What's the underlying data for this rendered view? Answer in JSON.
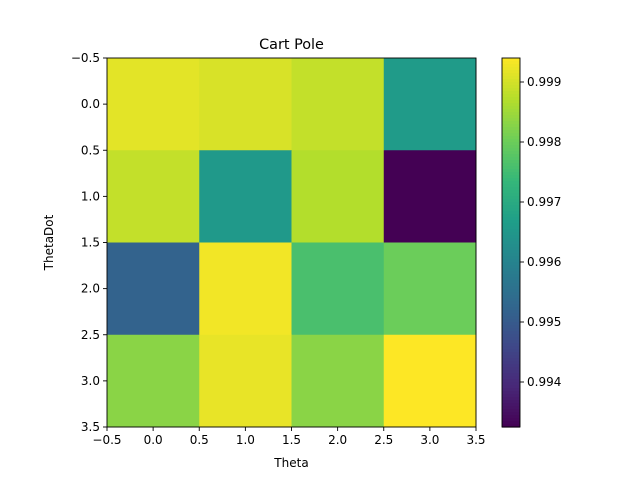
{
  "chart_data": {
    "type": "heatmap",
    "title": "Cart Pole",
    "xlabel": "Theta",
    "ylabel": "ThetaDot",
    "xlim": [
      -0.5,
      3.5
    ],
    "ylim": [
      3.5,
      -0.5
    ],
    "x_ticks": [
      "−0.5",
      "0.0",
      "0.5",
      "1.0",
      "1.5",
      "2.0",
      "2.5",
      "3.0",
      "3.5"
    ],
    "y_ticks": [
      "−0.5",
      "0.0",
      "0.5",
      "1.0",
      "1.5",
      "2.0",
      "2.5",
      "3.0",
      "3.5"
    ],
    "values": [
      [
        0.99915,
        0.99905,
        0.99885,
        0.9966
      ],
      [
        0.99885,
        0.99655,
        0.9987,
        0.99325
      ],
      [
        0.9952,
        0.9993,
        0.9976,
        0.998
      ],
      [
        0.9983,
        0.9992,
        0.9983,
        0.9994
      ]
    ],
    "colormap": "viridis",
    "colorbar": {
      "range": [
        0.99325,
        0.9994
      ],
      "ticks": [
        "0.994",
        "0.995",
        "0.996",
        "0.997",
        "0.998",
        "0.999"
      ]
    },
    "grid": false
  }
}
